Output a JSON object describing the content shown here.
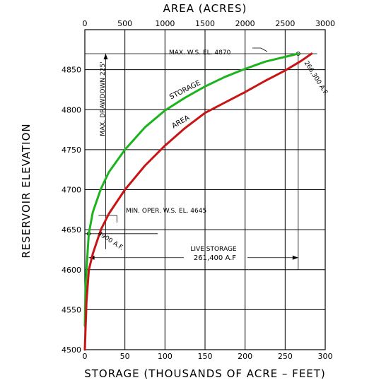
{
  "chart_data": {
    "type": "line",
    "title_top": "AREA (ACRES)",
    "xlabel": "STORAGE (THOUSANDS OF ACRE – FEET)",
    "ylabel": "RESERVOIR ELEVATION",
    "x_bottom": {
      "range": [
        0,
        300
      ],
      "ticks": [
        "0",
        "50",
        "100",
        "150",
        "200",
        "250",
        "300"
      ]
    },
    "x_top": {
      "range": [
        0,
        3000
      ],
      "ticks": [
        "0",
        "500",
        "1000",
        "1500",
        "2000",
        "2500",
        "3000"
      ]
    },
    "y": {
      "range": [
        4500,
        4900
      ],
      "ticks": [
        "4500",
        "4550",
        "4600",
        "4650",
        "4700",
        "4750",
        "4800",
        "4850"
      ]
    },
    "grid": true,
    "series": [
      {
        "name": "STORAGE",
        "axis": "bottom",
        "color": "#1db31d",
        "points": [
          [
            0,
            4530
          ],
          [
            1,
            4580
          ],
          [
            3,
            4615
          ],
          [
            4.9,
            4645
          ],
          [
            10,
            4672
          ],
          [
            20,
            4701
          ],
          [
            30,
            4722
          ],
          [
            50,
            4750
          ],
          [
            75,
            4778
          ],
          [
            100,
            4799
          ],
          [
            125,
            4815
          ],
          [
            150,
            4829
          ],
          [
            175,
            4841
          ],
          [
            200,
            4851
          ],
          [
            225,
            4860
          ],
          [
            250,
            4866
          ],
          [
            266.3,
            4870
          ]
        ]
      },
      {
        "name": "AREA",
        "axis": "top",
        "color": "#c81414",
        "points": [
          [
            0,
            4500
          ],
          [
            20,
            4560
          ],
          [
            50,
            4600
          ],
          [
            100,
            4620
          ],
          [
            150,
            4635
          ],
          [
            200,
            4650
          ],
          [
            300,
            4670
          ],
          [
            500,
            4700
          ],
          [
            750,
            4730
          ],
          [
            1000,
            4755
          ],
          [
            1250,
            4777
          ],
          [
            1500,
            4796
          ],
          [
            1750,
            4809
          ],
          [
            2000,
            4822
          ],
          [
            2250,
            4836
          ],
          [
            2500,
            4849
          ],
          [
            2700,
            4861
          ],
          [
            2830,
            4870
          ]
        ]
      }
    ],
    "annotations": {
      "max_ws": "MAX. W.S. EL. 4870",
      "min_oper": "MIN. OPER. W.S. EL. 4645",
      "max_drawdown": "MAX. DRAWDOWN 225'",
      "storage_at_max": "266,300 A.F.",
      "storage_at_min": "4900 A.F.",
      "live_storage_label": "LIVE STORAGE",
      "live_storage_value": "261,400 A.F"
    }
  }
}
